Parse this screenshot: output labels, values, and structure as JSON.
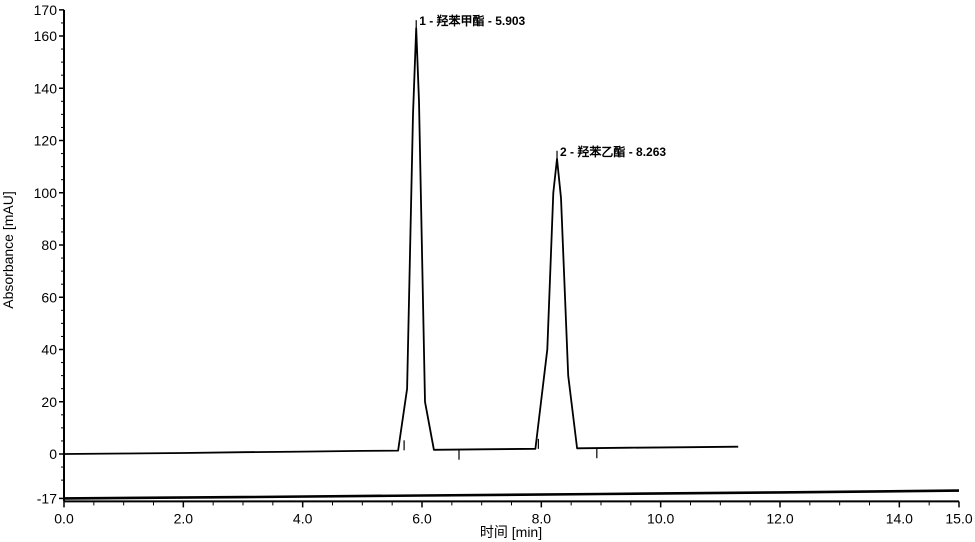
{
  "chart_data": {
    "type": "line",
    "title": "",
    "xlabel": "时间 [min]",
    "ylabel": "Absorbance [mAU]",
    "xlim": [
      0.0,
      15.0
    ],
    "ylim": [
      -17,
      170
    ],
    "x_ticks": [
      "0.0",
      "2.0",
      "4.0",
      "6.0",
      "8.0",
      "10.0",
      "12.0",
      "14.0",
      "15.0"
    ],
    "y_ticks": [
      "170",
      "160",
      "140",
      "120",
      "100",
      "80",
      "60",
      "40",
      "20",
      "0",
      "-17"
    ],
    "grid": false,
    "line_color": "#000000",
    "series": [
      {
        "x": [
          0.0,
          1.0,
          2.0,
          3.0,
          4.0,
          5.0,
          5.6,
          5.75,
          5.85,
          5.903,
          5.95,
          6.05,
          6.2,
          7.0,
          7.9,
          8.1,
          8.2,
          8.263,
          8.33,
          8.45,
          8.6,
          9.5,
          10.5,
          11.3
        ],
        "y": [
          0.0,
          0.2,
          0.4,
          0.7,
          0.9,
          1.2,
          1.3,
          25,
          130,
          163,
          135,
          20,
          1.6,
          1.8,
          2.0,
          40,
          100,
          113,
          98,
          30,
          2.2,
          2.4,
          2.6,
          2.8
        ]
      },
      {
        "x": [
          0.0,
          3.0,
          6.0,
          9.0,
          12.0,
          15.0
        ],
        "y": [
          -17.0,
          -16.5,
          -15.9,
          -15.3,
          -14.7,
          -14.0
        ]
      }
    ],
    "peaks": [
      {
        "label": "1 - 羟苯甲酯 - 5.903",
        "rt": 5.903,
        "height": 163,
        "start": 5.7,
        "end": 6.62
      },
      {
        "label": "2 - 羟苯乙酯 - 8.263",
        "rt": 8.263,
        "height": 113,
        "start": 7.95,
        "end": 8.93
      }
    ]
  }
}
